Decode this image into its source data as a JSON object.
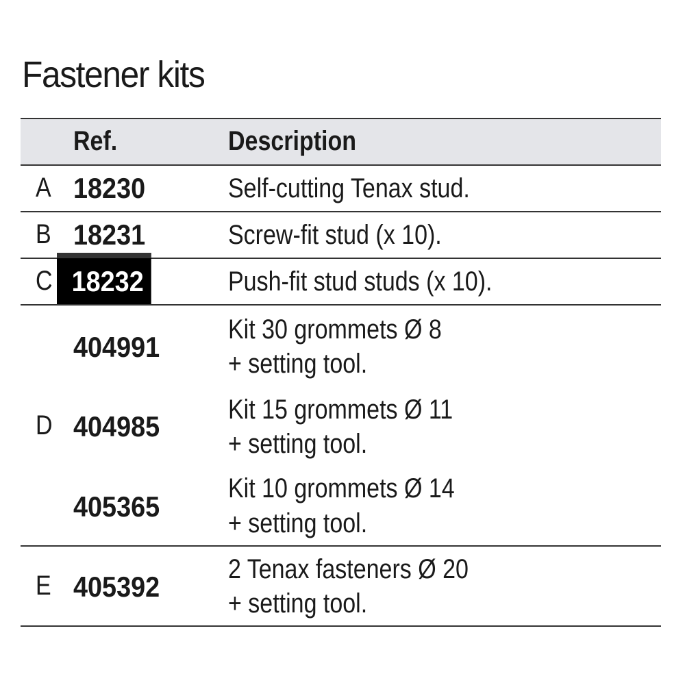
{
  "title": "Fastener kits",
  "columns": {
    "ref": "Ref.",
    "description": "Description"
  },
  "rows": [
    {
      "letter": "A",
      "ref": "18230",
      "description": [
        "Self-cutting Tenax stud."
      ]
    },
    {
      "letter": "B",
      "ref": "18231",
      "description": [
        "Screw-fit stud (x 10)."
      ]
    },
    {
      "letter": "C",
      "ref": "18232",
      "highlighted": true,
      "description": [
        "Push-fit stud studs (x 10)."
      ]
    },
    {
      "letter": "D",
      "items": [
        {
          "ref": "404991",
          "description": [
            "Kit 30 grommets Ø 8",
            "+ setting tool."
          ]
        },
        {
          "ref": "404985",
          "description": [
            "Kit 15 grommets Ø 11",
            "+ setting tool."
          ]
        },
        {
          "ref": "405365",
          "description": [
            "Kit 10 grommets Ø 14",
            "+ setting tool."
          ]
        }
      ]
    },
    {
      "letter": "E",
      "ref": "405392",
      "description": [
        "2 Tenax fasteners Ø 20",
        "+ setting tool."
      ]
    }
  ]
}
